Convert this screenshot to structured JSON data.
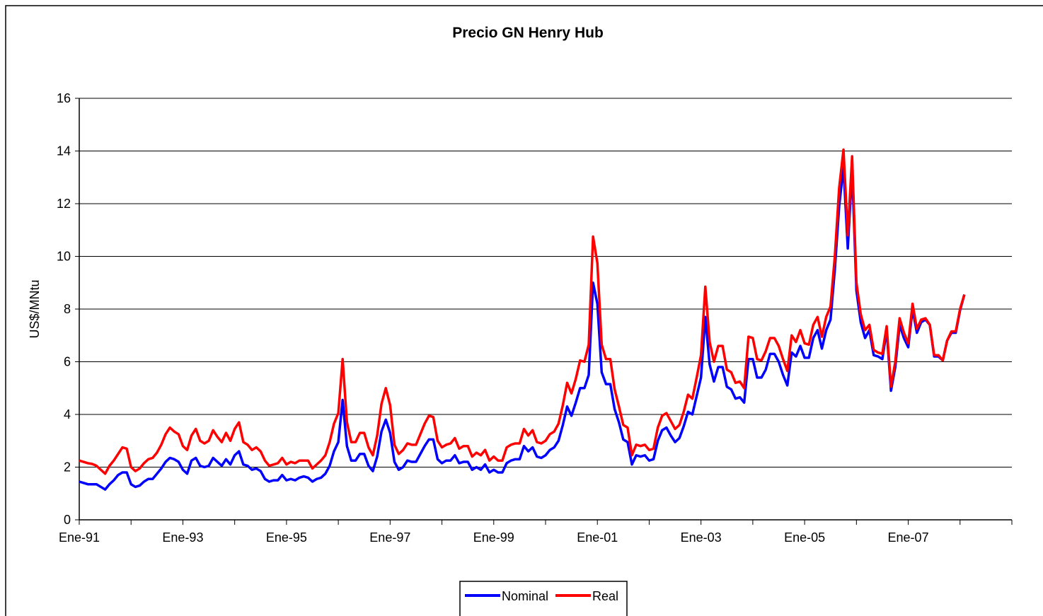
{
  "chart_data": {
    "type": "line",
    "title": "Precio GN Henry Hub",
    "ylabel": "US$/MNtu",
    "categories": [
      "Ene-91",
      null,
      null,
      null,
      null,
      null,
      null,
      null,
      null,
      null,
      null,
      null,
      null,
      null,
      null,
      null,
      null,
      null,
      null,
      null,
      null,
      null,
      null,
      null,
      "Ene-93",
      null,
      null,
      null,
      null,
      null,
      null,
      null,
      null,
      null,
      null,
      null,
      null,
      null,
      null,
      null,
      null,
      null,
      null,
      null,
      null,
      null,
      null,
      null,
      "Ene-95",
      null,
      null,
      null,
      null,
      null,
      null,
      null,
      null,
      null,
      null,
      null,
      null,
      null,
      null,
      null,
      null,
      null,
      null,
      null,
      null,
      null,
      null,
      null,
      "Ene-97",
      null,
      null,
      null,
      null,
      null,
      null,
      null,
      null,
      null,
      null,
      null,
      null,
      null,
      null,
      null,
      null,
      null,
      null,
      null,
      null,
      null,
      null,
      null,
      "Ene-99",
      null,
      null,
      null,
      null,
      null,
      null,
      null,
      null,
      null,
      null,
      null,
      null,
      null,
      null,
      null,
      null,
      null,
      null,
      null,
      null,
      null,
      null,
      null,
      "Ene-01",
      null,
      null,
      null,
      null,
      null,
      null,
      null,
      null,
      null,
      null,
      null,
      null,
      null,
      null,
      null,
      null,
      null,
      null,
      null,
      null,
      null,
      null,
      null,
      "Ene-03",
      null,
      null,
      null,
      null,
      null,
      null,
      null,
      null,
      null,
      null,
      null,
      null,
      null,
      null,
      null,
      null,
      null,
      null,
      null,
      null,
      null,
      null,
      null,
      "Ene-05",
      null,
      null,
      null,
      null,
      null,
      null,
      null,
      null,
      null,
      null,
      null,
      null,
      null,
      null,
      null,
      null,
      null,
      null,
      null,
      null,
      null,
      null,
      null,
      "Ene-07",
      null,
      null,
      null,
      null,
      null,
      null,
      null,
      null,
      null,
      null,
      null,
      null,
      null,
      null,
      null,
      null,
      null,
      null,
      null,
      null,
      null,
      null,
      null,
      null
    ],
    "series": [
      {
        "name": "Nominal",
        "color": "#0000ff",
        "values": [
          1.45,
          1.4,
          1.35,
          1.35,
          1.35,
          1.25,
          1.15,
          1.35,
          1.5,
          1.7,
          1.8,
          1.8,
          1.35,
          1.25,
          1.3,
          1.45,
          1.55,
          1.55,
          1.75,
          1.95,
          2.2,
          2.35,
          2.3,
          2.2,
          1.9,
          1.75,
          2.25,
          2.35,
          2.05,
          2.0,
          2.05,
          2.35,
          2.2,
          2.05,
          2.3,
          2.1,
          2.45,
          2.6,
          2.1,
          2.05,
          1.9,
          1.95,
          1.85,
          1.55,
          1.45,
          1.5,
          1.5,
          1.7,
          1.5,
          1.55,
          1.5,
          1.6,
          1.65,
          1.6,
          1.45,
          1.55,
          1.6,
          1.75,
          2.05,
          2.6,
          2.95,
          4.55,
          2.8,
          2.25,
          2.25,
          2.5,
          2.5,
          2.05,
          1.85,
          2.4,
          3.35,
          3.8,
          3.3,
          2.2,
          1.9,
          2.0,
          2.25,
          2.2,
          2.2,
          2.5,
          2.8,
          3.05,
          3.05,
          2.3,
          2.15,
          2.25,
          2.25,
          2.45,
          2.15,
          2.2,
          2.2,
          1.9,
          2.0,
          1.9,
          2.1,
          1.8,
          1.9,
          1.8,
          1.8,
          2.15,
          2.25,
          2.3,
          2.3,
          2.8,
          2.6,
          2.75,
          2.4,
          2.35,
          2.45,
          2.65,
          2.75,
          3.0,
          3.6,
          4.3,
          3.95,
          4.45,
          5.0,
          5.0,
          5.5,
          9.0,
          8.2,
          5.6,
          5.15,
          5.15,
          4.2,
          3.7,
          3.05,
          2.95,
          2.1,
          2.45,
          2.4,
          2.45,
          2.25,
          2.3,
          3.0,
          3.4,
          3.5,
          3.2,
          2.95,
          3.1,
          3.55,
          4.1,
          4.0,
          4.7,
          5.4,
          7.7,
          5.9,
          5.25,
          5.8,
          5.8,
          5.05,
          4.95,
          4.6,
          4.65,
          4.45,
          6.1,
          6.1,
          5.4,
          5.4,
          5.7,
          6.3,
          6.3,
          6.0,
          5.5,
          5.1,
          6.35,
          6.2,
          6.6,
          6.15,
          6.15,
          6.9,
          7.2,
          6.5,
          7.2,
          7.6,
          9.5,
          11.9,
          13.4,
          10.3,
          13.3,
          8.7,
          7.5,
          6.9,
          7.2,
          6.25,
          6.2,
          6.1,
          7.2,
          4.9,
          5.8,
          7.4,
          6.9,
          6.55,
          8.0,
          7.1,
          7.5,
          7.6,
          7.4,
          6.2,
          6.2,
          6.05,
          6.8,
          7.1,
          7.1,
          7.95,
          8.55,
          null,
          null,
          null,
          null,
          null,
          null,
          null,
          null,
          null,
          null,
          null
        ]
      },
      {
        "name": "Real",
        "color": "#ff0000",
        "values": [
          2.25,
          2.2,
          2.15,
          2.12,
          2.05,
          1.9,
          1.75,
          2.05,
          2.25,
          2.5,
          2.75,
          2.7,
          2.0,
          1.85,
          1.95,
          2.15,
          2.3,
          2.35,
          2.55,
          2.85,
          3.25,
          3.5,
          3.35,
          3.25,
          2.8,
          2.65,
          3.2,
          3.45,
          3.0,
          2.9,
          3.0,
          3.4,
          3.15,
          2.95,
          3.3,
          3.0,
          3.45,
          3.7,
          2.95,
          2.85,
          2.65,
          2.75,
          2.6,
          2.25,
          2.05,
          2.1,
          2.15,
          2.35,
          2.1,
          2.2,
          2.15,
          2.25,
          2.25,
          2.25,
          1.95,
          2.1,
          2.25,
          2.45,
          2.95,
          3.65,
          4.05,
          6.1,
          3.7,
          2.95,
          2.95,
          3.3,
          3.3,
          2.75,
          2.45,
          3.2,
          4.4,
          5.0,
          4.35,
          2.85,
          2.5,
          2.65,
          2.9,
          2.85,
          2.85,
          3.25,
          3.65,
          3.95,
          3.9,
          3.0,
          2.75,
          2.85,
          2.9,
          3.1,
          2.7,
          2.8,
          2.8,
          2.4,
          2.55,
          2.45,
          2.65,
          2.25,
          2.4,
          2.25,
          2.25,
          2.75,
          2.85,
          2.9,
          2.9,
          3.45,
          3.2,
          3.4,
          2.95,
          2.9,
          3.0,
          3.25,
          3.35,
          3.65,
          4.35,
          5.2,
          4.8,
          5.35,
          6.05,
          6.0,
          6.65,
          10.75,
          9.75,
          6.65,
          6.1,
          6.1,
          4.95,
          4.3,
          3.6,
          3.5,
          2.45,
          2.85,
          2.8,
          2.85,
          2.65,
          2.7,
          3.5,
          3.95,
          4.05,
          3.75,
          3.45,
          3.6,
          4.1,
          4.75,
          4.6,
          5.4,
          6.25,
          8.85,
          6.75,
          6.0,
          6.6,
          6.6,
          5.7,
          5.6,
          5.2,
          5.25,
          5.0,
          6.95,
          6.9,
          6.1,
          6.05,
          6.4,
          6.9,
          6.9,
          6.6,
          6.1,
          5.65,
          7.0,
          6.75,
          7.2,
          6.7,
          6.65,
          7.4,
          7.7,
          6.95,
          7.7,
          8.1,
          10.0,
          12.6,
          14.05,
          10.8,
          13.8,
          9.0,
          7.8,
          7.2,
          7.4,
          6.45,
          6.35,
          6.3,
          7.35,
          5.05,
          6.0,
          7.65,
          7.1,
          6.7,
          8.2,
          7.25,
          7.6,
          7.65,
          7.4,
          6.25,
          6.25,
          6.05,
          6.8,
          7.15,
          7.15,
          8.0,
          8.55,
          null,
          null,
          null,
          null,
          null,
          null,
          null,
          null,
          null,
          null,
          null
        ]
      }
    ],
    "ylim": [
      0,
      16
    ],
    "yticks": [
      0,
      2,
      4,
      6,
      8,
      10,
      12,
      14,
      16
    ],
    "grid": true,
    "legend": "bottom"
  }
}
